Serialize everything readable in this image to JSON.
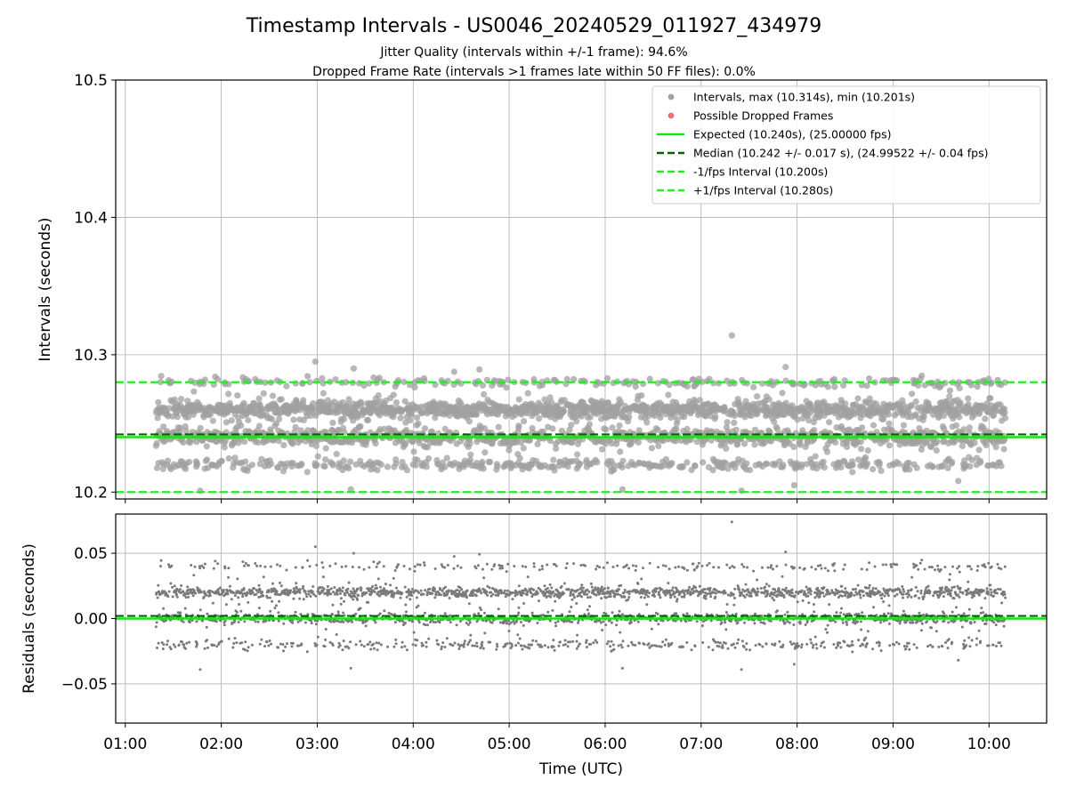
{
  "chart_data": {
    "type": "scatter",
    "title": "Timestamp Intervals - US0046_20240529_011927_434979",
    "subtitle_lines": [
      "Jitter Quality (intervals within +/-1 frame): 94.6%",
      "Dropped Frame Rate (intervals >1 frames late within 50 FF files): 0.0%"
    ],
    "xlabel": "Time (UTC)",
    "x_ticks": [
      "01:00",
      "02:00",
      "03:00",
      "04:00",
      "05:00",
      "06:00",
      "07:00",
      "08:00",
      "09:00",
      "10:00"
    ],
    "x_range_hours": [
      0.9,
      10.6
    ],
    "data_x_range_hours": [
      1.32,
      10.17
    ],
    "grid": true,
    "panels": [
      {
        "name": "intervals",
        "ylabel": "Intervals (seconds)",
        "ylim": [
          10.195,
          10.5
        ],
        "y_ticks": [
          "10.2",
          "10.3",
          "10.4",
          "10.5"
        ],
        "y_tick_values": [
          10.2,
          10.3,
          10.4,
          10.5
        ],
        "legend_position": "top-right",
        "legend": [
          {
            "label": "Intervals, max (10.314s), min (10.201s)",
            "kind": "dot",
            "color": "#a0a0a0"
          },
          {
            "label": "Possible Dropped Frames",
            "kind": "dot",
            "color": "#f07070"
          },
          {
            "label": "Expected (10.240s), (25.00000 fps)",
            "kind": "solid",
            "color": "#11e611"
          },
          {
            "label": "Median (10.242 +/- 0.017 s), (24.99522 +/- 0.04 fps)",
            "kind": "dashed",
            "color": "#006400"
          },
          {
            "label": "-1/fps Interval (10.200s)",
            "kind": "dashed",
            "color": "#22ee22"
          },
          {
            "label": "+1/fps Interval (10.280s)",
            "kind": "dashed",
            "color": "#22ee22"
          }
        ],
        "reference_lines": [
          {
            "value": 10.24,
            "style": "solid",
            "color": "#11e611"
          },
          {
            "value": 10.242,
            "style": "dashed",
            "color": "#006400"
          },
          {
            "value": 10.2,
            "style": "dashed",
            "color": "#22ee22"
          },
          {
            "value": 10.28,
            "style": "dashed",
            "color": "#22ee22"
          }
        ],
        "point_clusters": [
          {
            "center": 10.26,
            "spread": 0.003,
            "share": 0.42
          },
          {
            "center": 10.24,
            "spread": 0.003,
            "share": 0.3
          },
          {
            "center": 10.22,
            "spread": 0.002,
            "share": 0.13
          },
          {
            "center": 10.28,
            "spread": 0.0015,
            "share": 0.07
          },
          {
            "center": 10.25,
            "spread": 0.015,
            "share": 0.08
          }
        ],
        "notable_points": [
          {
            "x": 7.32,
            "y": 10.314
          },
          {
            "x": 2.98,
            "y": 10.295
          },
          {
            "x": 7.88,
            "y": 10.291
          },
          {
            "x": 3.38,
            "y": 10.29
          },
          {
            "x": 1.78,
            "y": 10.201
          },
          {
            "x": 3.35,
            "y": 10.202
          },
          {
            "x": 6.18,
            "y": 10.202
          },
          {
            "x": 7.42,
            "y": 10.201
          },
          {
            "x": 7.97,
            "y": 10.205
          }
        ],
        "dot_color": "#a0a0a0"
      },
      {
        "name": "residuals",
        "ylabel": "Residuals (seconds)",
        "ylim": [
          -0.08,
          0.08
        ],
        "y_ticks": [
          "0.05",
          "0.00",
          "−0.05"
        ],
        "y_tick_values": [
          0.05,
          0.0,
          -0.05
        ],
        "reference_lines": [
          {
            "value": 0.0,
            "style": "solid",
            "color": "#11e611"
          },
          {
            "value": 0.002,
            "style": "dashed",
            "color": "#006400"
          }
        ],
        "point_clusters": [
          {
            "center": 0.02,
            "spread": 0.002,
            "share": 0.42
          },
          {
            "center": 0.0,
            "spread": 0.002,
            "share": 0.3
          },
          {
            "center": -0.02,
            "spread": 0.002,
            "share": 0.13
          },
          {
            "center": 0.04,
            "spread": 0.0015,
            "share": 0.07
          },
          {
            "center": 0.01,
            "spread": 0.015,
            "share": 0.08
          }
        ],
        "notable_points": [
          {
            "x": 7.32,
            "y": 0.074
          },
          {
            "x": 2.98,
            "y": 0.055
          },
          {
            "x": 7.88,
            "y": 0.051
          },
          {
            "x": 3.38,
            "y": 0.05
          },
          {
            "x": 1.78,
            "y": -0.039
          },
          {
            "x": 3.35,
            "y": -0.038
          },
          {
            "x": 6.18,
            "y": -0.038
          },
          {
            "x": 7.42,
            "y": -0.039
          },
          {
            "x": 7.97,
            "y": -0.035
          }
        ],
        "dot_color": "#7a7a7a"
      }
    ]
  }
}
